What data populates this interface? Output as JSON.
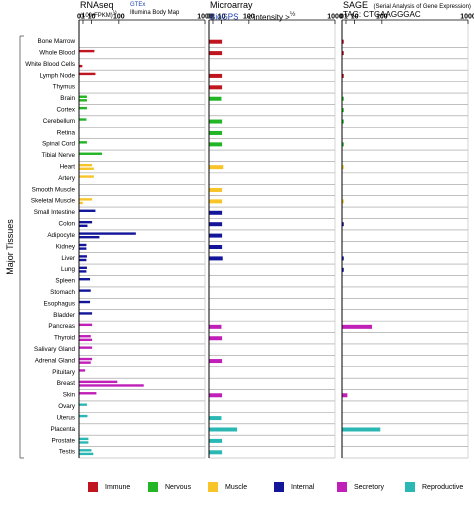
{
  "header": {
    "rnaseq_title": "RNAseq",
    "rnaseq_unit": "(100•FPKM)",
    "rnaseq_unit_sup": "½",
    "rnaseq_source1": "GTEx",
    "rnaseq_source2": "Illumina Body Map",
    "microarray_title": "Microarray",
    "microarray_source": "BioGPS",
    "microarray_unit": "< intensity >",
    "microarray_unit_sup": "½",
    "sage_title": "SAGE",
    "sage_subtitle": "(Serial Analysis of Gene Expression)",
    "sage_tag": "TAG: CTGAAGGGAC",
    "ylabel": "Major Tissues"
  },
  "legend": [
    {
      "label": "Immune",
      "color": "#c0151e"
    },
    {
      "label": "Nervous",
      "color": "#23b526"
    },
    {
      "label": "Muscle",
      "color": "#f7c52a"
    },
    {
      "label": "Internal",
      "color": "#14169a"
    },
    {
      "label": "Secretory",
      "color": "#c020b8"
    },
    {
      "label": "Reproductive",
      "color": "#2bb8b4"
    }
  ],
  "chart_data": {
    "type": "bar",
    "orientation": "horizontal",
    "ylabel": "Major Tissues",
    "categories": [
      "Bone Marrow",
      "Whole Blood",
      "White Blood Cells",
      "Lymph Node",
      "Thymus",
      "Brain",
      "Cortex",
      "Cerebellum",
      "Retina",
      "Spinal Cord",
      "Tibial Nerve",
      "Heart",
      "Artery",
      "Smooth Muscle",
      "Skeletal Muscle",
      "Small Intestine",
      "Colon",
      "Adipocyte",
      "Kidney",
      "Liver",
      "Lung",
      "Spleen",
      "Stomach",
      "Esophagus",
      "Bladder",
      "Pancreas",
      "Thyroid",
      "Salivary Gland",
      "Adrenal Gland",
      "Pituitary",
      "Breast",
      "Skin",
      "Ovary",
      "Uterus",
      "Placenta",
      "Prostate",
      "Testis"
    ],
    "category_group": [
      "Immune",
      "Immune",
      "Immune",
      "Immune",
      "Immune",
      "Nervous",
      "Nervous",
      "Nervous",
      "Nervous",
      "Nervous",
      "Nervous",
      "Muscle",
      "Muscle",
      "Muscle",
      "Muscle",
      "Internal",
      "Internal",
      "Internal",
      "Internal",
      "Internal",
      "Internal",
      "Internal",
      "Internal",
      "Internal",
      "Internal",
      "Secretory",
      "Secretory",
      "Secretory",
      "Secretory",
      "Secretory",
      "Secretory",
      "Secretory",
      "Reproductive",
      "Reproductive",
      "Reproductive",
      "Reproductive",
      "Reproductive"
    ],
    "panels": [
      {
        "title": "RNAseq",
        "xscale": "sqrt",
        "xlim": [
          0,
          1000
        ],
        "xticks": [
          "0",
          "1",
          "10",
          "100",
          "1000"
        ],
        "series": [
          {
            "name": "GTEx",
            "values": [
              null,
              14,
              null,
              16,
              null,
              3.5,
              3.5,
              3,
              null,
              3.5,
              32,
              10,
              13,
              null,
              10,
              16,
              10,
              200,
              3,
              3.5,
              3.5,
              7,
              8,
              7,
              10,
              10,
              8,
              10,
              10,
              2,
              90,
              18,
              3.5,
              4,
              null,
              5,
              9
            ]
          },
          {
            "name": "Illumina Body Map",
            "values": [
              null,
              null,
              0.5,
              null,
              null,
              3.5,
              null,
              null,
              null,
              null,
              null,
              13,
              null,
              null,
              0.7,
              null,
              4,
              25,
              3,
              3,
              3,
              null,
              null,
              null,
              null,
              null,
              10,
              null,
              8,
              null,
              260,
              null,
              null,
              null,
              null,
              5,
              12
            ]
          }
        ]
      },
      {
        "title": "Microarray",
        "xscale": "sqrt",
        "xlim": [
          0,
          1000
        ],
        "xticks": [
          "0",
          "1",
          "10",
          "100",
          "1000"
        ],
        "series": [
          {
            "name": "BioGPS",
            "values": [
              10,
              10,
              null,
              10,
              10,
              9,
              null,
              10,
              10,
              10,
              null,
              12,
              null,
              10,
              10,
              10,
              10,
              10,
              10,
              11,
              null,
              null,
              null,
              null,
              null,
              9,
              10,
              null,
              10,
              null,
              null,
              10,
              null,
              9,
              48,
              10,
              10
            ]
          }
        ]
      },
      {
        "title": "SAGE",
        "xscale": "sqrt",
        "xlim": [
          0,
          1000
        ],
        "xticks": [
          "0",
          "1",
          "10",
          "100",
          "1000"
        ],
        "series": [
          {
            "name": "CTGAAGGGAC",
            "values": [
              0.1,
              0.1,
              null,
              0.1,
              null,
              0.1,
              0.1,
              0.1,
              null,
              0.1,
              null,
              0.1,
              null,
              null,
              0.1,
              null,
              0.1,
              null,
              null,
              0.1,
              0.1,
              null,
              null,
              null,
              null,
              55,
              null,
              null,
              null,
              null,
              null,
              1.5,
              null,
              null,
              90,
              null,
              null
            ]
          }
        ]
      }
    ]
  }
}
